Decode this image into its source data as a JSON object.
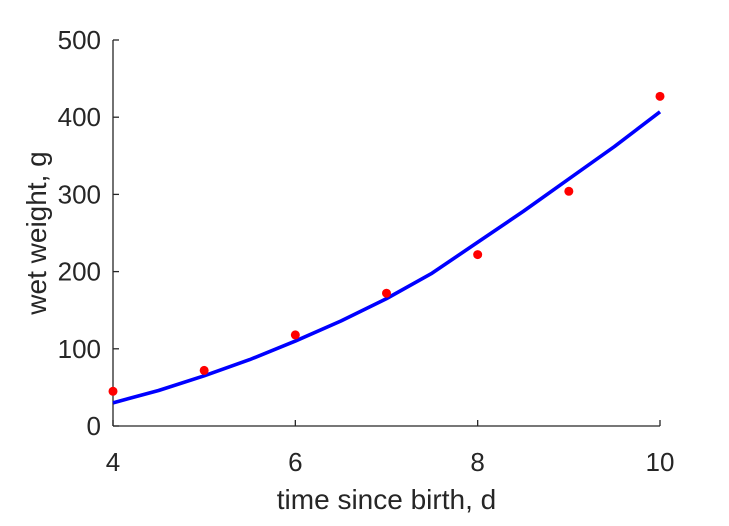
{
  "chart_data": {
    "type": "scatter",
    "title": "",
    "xlabel": "time since birth, d",
    "ylabel": "wet weight, g",
    "xlim": [
      4,
      10
    ],
    "ylim": [
      0,
      500
    ],
    "xticks": [
      4,
      6,
      8,
      10
    ],
    "yticks": [
      0,
      100,
      200,
      300,
      400,
      500
    ],
    "grid": false,
    "legend": "none",
    "series": [
      {
        "kind": "points",
        "color": "#ff0000",
        "x": [
          4,
          5,
          6,
          7,
          8,
          9,
          10
        ],
        "y": [
          45,
          72,
          118,
          172,
          222,
          304,
          427
        ]
      },
      {
        "kind": "line",
        "color": "#0000ff",
        "x": [
          4,
          4.5,
          5,
          5.5,
          6,
          6.5,
          7,
          7.5,
          8,
          8.5,
          9,
          9.5,
          10
        ],
        "y": [
          30,
          46,
          65,
          86,
          110,
          136,
          165,
          198,
          238,
          278,
          320,
          362,
          407
        ]
      }
    ]
  }
}
